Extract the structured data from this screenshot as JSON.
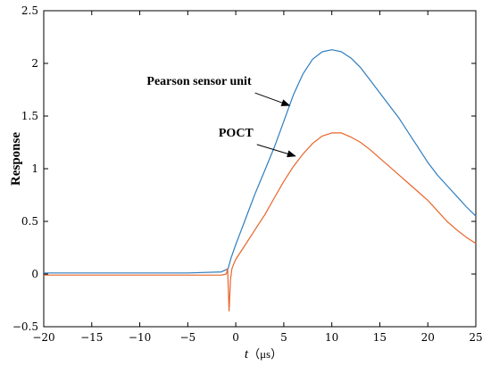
{
  "chart_data": {
    "type": "line",
    "title": "",
    "xlabel_italic": "t",
    "xlabel_unit": "（μs）",
    "ylabel": "Response",
    "xlim": [
      -20,
      25
    ],
    "ylim": [
      -0.5,
      2.5
    ],
    "x_ticks": [
      -20,
      -15,
      -10,
      -5,
      0,
      5,
      10,
      15,
      20,
      25
    ],
    "x_tick_labels": [
      "−20",
      "−15",
      "−10",
      "−5",
      "0",
      "5",
      "10",
      "15",
      "20",
      "25"
    ],
    "y_ticks": [
      -0.5,
      0,
      0.5,
      1,
      1.5,
      2,
      2.5
    ],
    "y_tick_labels": [
      "−0.5",
      "0",
      "0.5",
      "1",
      "1.5",
      "2",
      "2.5"
    ],
    "grid": false,
    "legend": "none",
    "series": [
      {
        "name": "Pearson sensor unit",
        "color": "#2e7dbf",
        "x": [
          -20,
          -15,
          -10,
          -5,
          -1.5,
          -0.8,
          -0.5,
          0,
          0.5,
          1,
          1.5,
          2,
          3,
          4,
          5,
          6,
          7,
          8,
          9,
          10,
          11,
          12,
          13,
          14,
          15,
          16,
          17,
          18,
          19,
          20,
          21,
          22,
          23,
          24,
          25
        ],
        "values": [
          0.01,
          0.01,
          0.01,
          0.01,
          0.02,
          0.05,
          0.15,
          0.28,
          0.4,
          0.52,
          0.64,
          0.76,
          0.98,
          1.2,
          1.45,
          1.7,
          1.9,
          2.04,
          2.11,
          2.13,
          2.11,
          2.05,
          1.96,
          1.84,
          1.72,
          1.6,
          1.48,
          1.34,
          1.2,
          1.06,
          0.94,
          0.84,
          0.74,
          0.64,
          0.55
        ]
      },
      {
        "name": "POCT",
        "color": "#e8652a",
        "x": [
          -20,
          -15,
          -10,
          -5,
          -1.5,
          -1.0,
          -0.85,
          -0.7,
          -0.55,
          -0.4,
          -0.2,
          0,
          1,
          2,
          3,
          4,
          5,
          6,
          7,
          8,
          9,
          10,
          11,
          12,
          13,
          14,
          15,
          16,
          17,
          18,
          19,
          20,
          21,
          22,
          23,
          24,
          25
        ],
        "values": [
          -0.01,
          -0.01,
          -0.01,
          -0.01,
          -0.01,
          0.0,
          0.05,
          -0.35,
          -0.05,
          0.05,
          0.1,
          0.14,
          0.28,
          0.42,
          0.56,
          0.72,
          0.88,
          1.02,
          1.14,
          1.24,
          1.31,
          1.34,
          1.34,
          1.3,
          1.25,
          1.18,
          1.1,
          1.02,
          0.94,
          0.86,
          0.78,
          0.7,
          0.6,
          0.5,
          0.42,
          0.35,
          0.29
        ]
      }
    ],
    "annotations": [
      {
        "text": "Pearson sensor unit",
        "arrow_from": [
          2.0,
          1.72
        ],
        "arrow_to": [
          5.6,
          1.6
        ]
      },
      {
        "text": "POCT",
        "arrow_from": [
          2.2,
          1.23
        ],
        "arrow_to": [
          6.2,
          1.12
        ]
      }
    ]
  }
}
